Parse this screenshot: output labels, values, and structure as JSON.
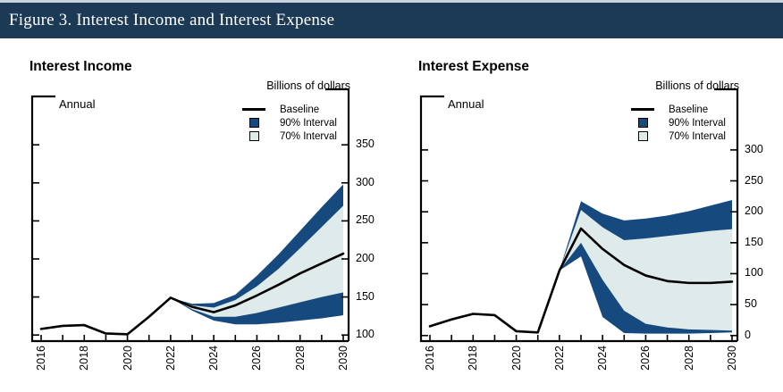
{
  "header": {
    "title": "Figure 3. Interest Income and Interest Expense"
  },
  "colors": {
    "header_bar": "#1c3a55",
    "top_strip": "#c9d3de",
    "band_90": "#164a7f",
    "band_70": "#dfeaea",
    "baseline_line": "#000000",
    "axis": "#000000",
    "background": "#ffffff"
  },
  "legend": {
    "baseline_label": "Baseline",
    "interval_90_label": "90% Interval",
    "interval_70_label": "70% Interval"
  },
  "chart_data": [
    {
      "type": "area",
      "title": "Interest Income",
      "frequency_label": "Annual",
      "unit_label": "Billions of dollars",
      "x": [
        2016,
        2017,
        2018,
        2019,
        2020,
        2021,
        2022,
        2023,
        2024,
        2025,
        2026,
        2027,
        2028,
        2029,
        2030
      ],
      "xtick_label_years": [
        2016,
        2018,
        2020,
        2022,
        2024,
        2026,
        2028,
        2030
      ],
      "yticks": [
        100,
        150,
        200,
        250,
        300,
        350
      ],
      "ylim": [
        92,
        423
      ],
      "series": [
        {
          "name": "Baseline",
          "values": [
            108,
            112,
            113,
            102,
            101,
            124,
            149,
            137,
            130,
            139,
            152,
            166,
            181,
            194,
            207
          ]
        },
        {
          "name": "90% Interval Upper",
          "values": [
            null,
            null,
            null,
            null,
            null,
            null,
            149,
            141,
            142,
            153,
            178,
            206,
            237,
            268,
            298
          ]
        },
        {
          "name": "70% Interval Upper",
          "values": [
            null,
            null,
            null,
            null,
            null,
            null,
            149,
            139,
            136,
            146,
            164,
            187,
            214,
            242,
            270
          ]
        },
        {
          "name": "70% Interval Lower",
          "values": [
            null,
            null,
            null,
            null,
            null,
            null,
            149,
            134,
            124,
            124,
            129,
            136,
            143,
            150,
            156
          ]
        },
        {
          "name": "90% Interval Lower",
          "values": [
            null,
            null,
            null,
            null,
            null,
            null,
            149,
            132,
            119,
            114,
            114,
            116,
            119,
            122,
            126
          ]
        }
      ]
    },
    {
      "type": "area",
      "title": "Interest Expense",
      "frequency_label": "Annual",
      "unit_label": "Billions of dollars",
      "x": [
        2016,
        2017,
        2018,
        2019,
        2020,
        2021,
        2022,
        2023,
        2024,
        2025,
        2026,
        2027,
        2028,
        2029,
        2030
      ],
      "xtick_label_years": [
        2016,
        2018,
        2020,
        2022,
        2024,
        2026,
        2028,
        2030
      ],
      "yticks": [
        0,
        50,
        100,
        150,
        200,
        250,
        300
      ],
      "ylim": [
        -9,
        398
      ],
      "series": [
        {
          "name": "Baseline",
          "values": [
            15,
            26,
            35,
            33,
            7,
            5,
            105,
            173,
            140,
            114,
            97,
            88,
            85,
            85,
            87
          ]
        },
        {
          "name": "90% Interval Upper",
          "values": [
            null,
            null,
            null,
            null,
            null,
            null,
            105,
            217,
            197,
            186,
            189,
            194,
            201,
            210,
            219
          ]
        },
        {
          "name": "70% Interval Upper",
          "values": [
            null,
            null,
            null,
            null,
            null,
            null,
            105,
            203,
            175,
            154,
            157,
            161,
            165,
            169,
            172
          ]
        },
        {
          "name": "70% Interval Lower",
          "values": [
            null,
            null,
            null,
            null,
            null,
            null,
            105,
            150,
            90,
            40,
            19,
            13,
            10,
            9,
            8
          ]
        },
        {
          "name": "90% Interval Lower",
          "values": [
            null,
            null,
            null,
            null,
            null,
            null,
            105,
            128,
            30,
            4,
            3,
            3,
            3,
            4,
            5
          ]
        }
      ]
    }
  ]
}
